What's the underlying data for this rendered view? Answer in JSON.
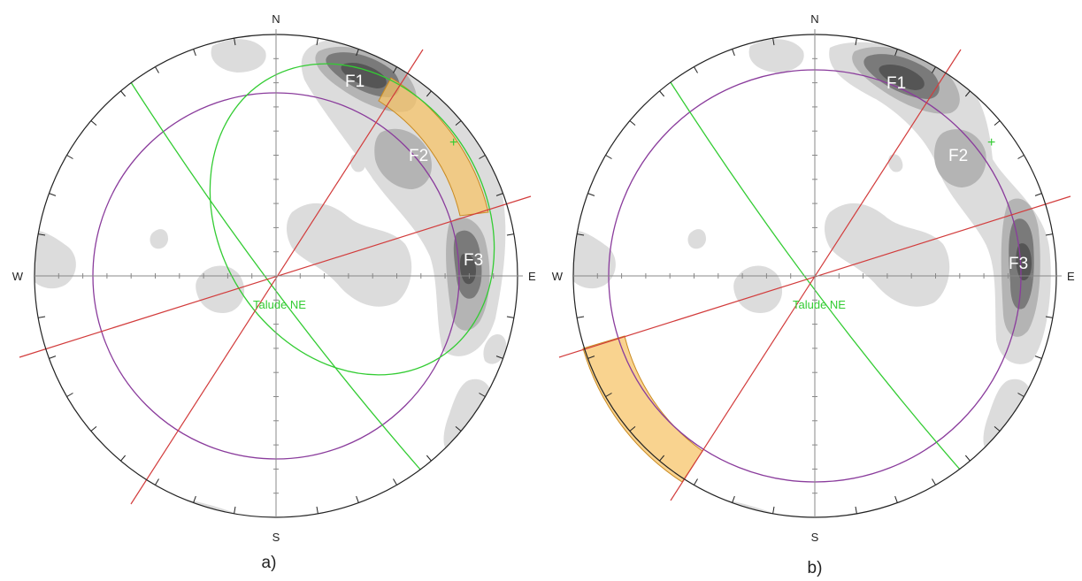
{
  "panels": [
    {
      "caption": "a)",
      "directions": {
        "north": "N",
        "south": "S",
        "east": "E",
        "west": "W"
      },
      "sets": [
        "F1",
        "F2",
        "F3"
      ],
      "slope_label": "Talude NE"
    },
    {
      "caption": "b)",
      "directions": {
        "north": "N",
        "south": "S",
        "east": "E",
        "west": "W"
      },
      "sets": [
        "F1",
        "F2",
        "F3"
      ],
      "slope_label": "Talude NE"
    }
  ],
  "colors": {
    "great_circle_slope": "#33cc33",
    "friction_circle": "#8a3c9c",
    "lateral_limits": "#d23c3c",
    "critical_zone": "#f7c46a",
    "contour_light": "#dcdcdc",
    "contour_medium": "#b4b4b4",
    "contour_dark": "#7a7a7a",
    "contour_darkest": "#555555"
  }
}
